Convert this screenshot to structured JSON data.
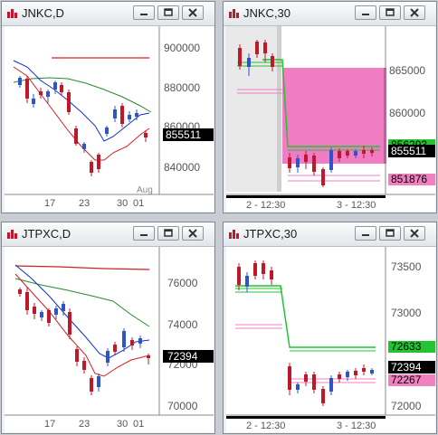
{
  "windows": [
    {
      "title": "JNKC,D",
      "price_axis": [
        "900000",
        "880000",
        "860000",
        "840000"
      ],
      "time_axis": [
        "17",
        "23",
        "30",
        "01",
        "Aug"
      ],
      "last_price": "855511"
    },
    {
      "title": "JNKC,30",
      "price_axis": [
        "865000",
        "860000"
      ],
      "time_axis": [
        "2 - 12:30",
        "3 - 12:30"
      ],
      "last_price": "855511",
      "tag_green": "856293",
      "tag_pink": "851876"
    },
    {
      "title": "JTPXC,D",
      "price_axis": [
        "76000",
        "74000",
        "72000",
        "70000"
      ],
      "time_axis": [
        "17",
        "23",
        "30",
        "01"
      ],
      "last_price": "72394"
    },
    {
      "title": "JTPXC,30",
      "price_axis": [
        "73500",
        "73000",
        "72000"
      ],
      "time_axis": [
        "2 - 12:30",
        "3 - 12:30"
      ],
      "last_price": "72394",
      "tag_green": "72633",
      "tag_pink": "72267"
    }
  ],
  "colors": {
    "up_candle": "#2f54c8",
    "down_candle": "#c0182a",
    "upper_band": "#2a8a2a",
    "lower_band": "#d42020",
    "mid_line": "#1030d0",
    "highlight_zone": "#f07cc4",
    "support_green": "#22c432",
    "support_pink": "#f080c0"
  },
  "icons": [
    "chart-logo-icon",
    "minimize-icon",
    "restore-icon",
    "close-icon"
  ]
}
